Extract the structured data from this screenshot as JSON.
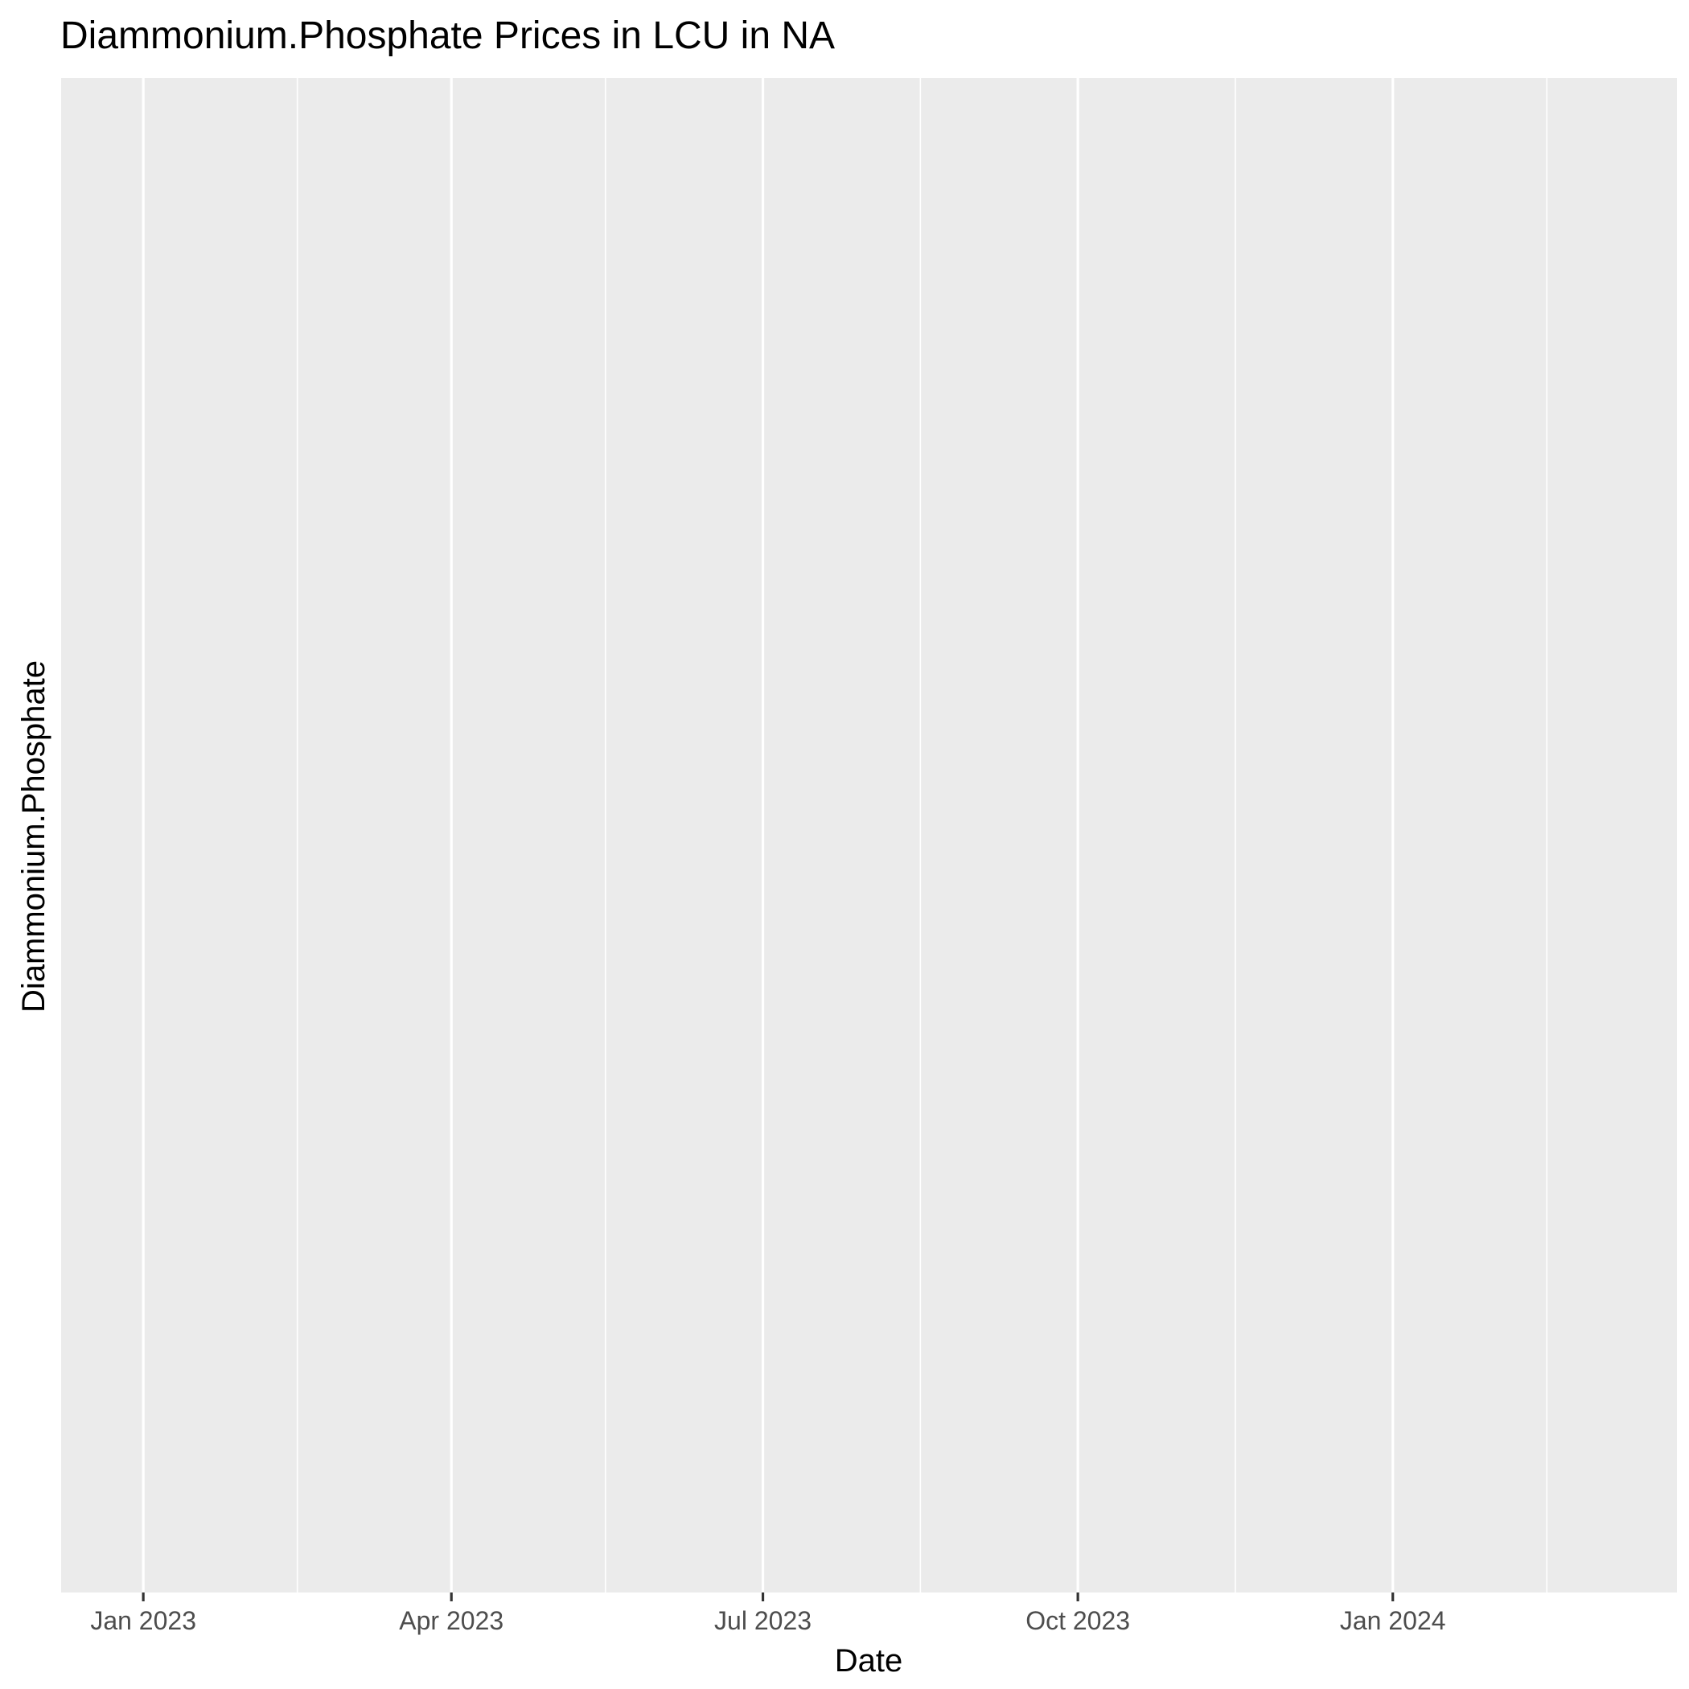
{
  "chart_data": {
    "type": "line",
    "title": "Diammonium.Phosphate Prices in LCU in NA",
    "xlabel": "Date",
    "ylabel": "Diammonium.Phosphate",
    "x_scale": "date",
    "xlim": [
      "2022-12-08",
      "2024-03-24"
    ],
    "x_ticks": [
      {
        "value": "2023-01-01",
        "label": "Jan 2023"
      },
      {
        "value": "2023-04-01",
        "label": "Apr 2023"
      },
      {
        "value": "2023-07-01",
        "label": "Jul 2023"
      },
      {
        "value": "2023-10-01",
        "label": "Oct 2023"
      },
      {
        "value": "2024-01-01",
        "label": "Jan 2024"
      }
    ],
    "x_minor_ticks": [
      "2023-02-15",
      "2023-05-16",
      "2023-08-16",
      "2023-11-16",
      "2024-02-15"
    ],
    "y_ticks": [],
    "series": [],
    "grid": true,
    "legend": "none",
    "colors": {
      "panel_background": "#ebebeb",
      "grid_major": "#ffffff",
      "grid_minor": "#ffffff",
      "tick_mark": "#333333",
      "tick_label": "#4d4d4d",
      "title": "#000000"
    }
  }
}
